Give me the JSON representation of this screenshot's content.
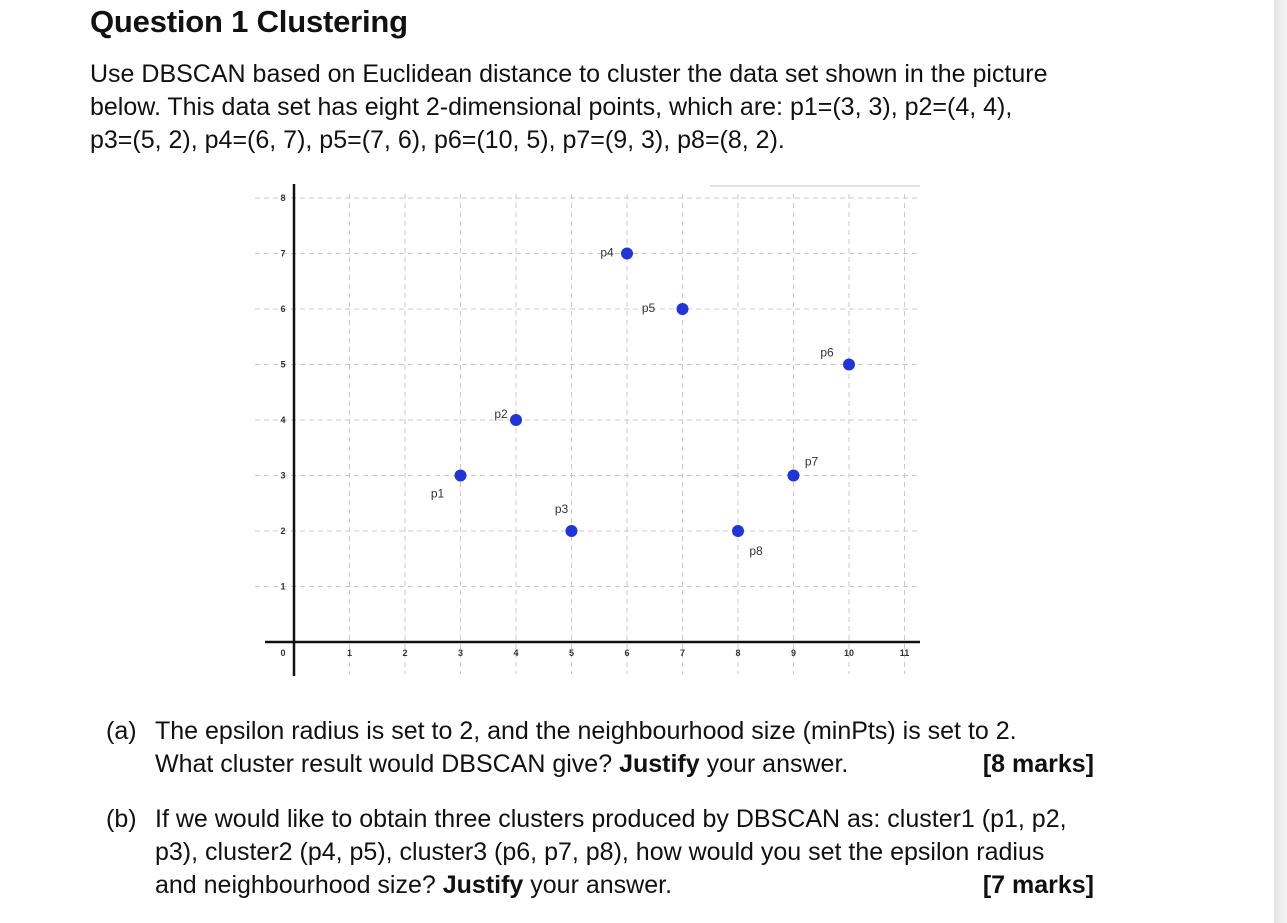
{
  "question": {
    "title": "Question 1 Clustering",
    "intro_lines": [
      "Use DBSCAN based on Euclidean distance to cluster the data set shown in the picture",
      "below.  This data set has eight 2-dimensional points, which are: p1=(3, 3), p2=(4, 4),",
      "p3=(5, 2), p4=(6, 7), p5=(7, 6), p6=(10, 5), p7=(9, 3), p8=(8, 2)."
    ]
  },
  "chart_data": {
    "type": "scatter",
    "title": "",
    "xlabel": "",
    "ylabel": "",
    "xlim": [
      0,
      11
    ],
    "ylim": [
      0,
      8
    ],
    "grid": true,
    "x_ticks": [
      0,
      1,
      2,
      3,
      4,
      5,
      6,
      7,
      8,
      9,
      10,
      11
    ],
    "y_ticks": [
      1,
      2,
      3,
      4,
      5,
      6,
      7,
      8
    ],
    "point_color": "#1f35d6",
    "points": [
      {
        "label": "p1",
        "x": 3,
        "y": 3
      },
      {
        "label": "p2",
        "x": 4,
        "y": 4
      },
      {
        "label": "p3",
        "x": 5,
        "y": 2
      },
      {
        "label": "p4",
        "x": 6,
        "y": 7
      },
      {
        "label": "p5",
        "x": 7,
        "y": 6
      },
      {
        "label": "p6",
        "x": 10,
        "y": 5
      },
      {
        "label": "p7",
        "x": 9,
        "y": 3
      },
      {
        "label": "p8",
        "x": 8,
        "y": 2
      }
    ]
  },
  "parts": {
    "a": {
      "label": "(a)",
      "line1": "The epsilon radius is set to 2, and the neighbourhood size (minPts) is set to 2.",
      "line2_pre": "What cluster result would DBSCAN give? ",
      "justify": "Justify",
      "line2_post": " your answer.",
      "marks": "[8 marks]"
    },
    "b": {
      "label": "(b)",
      "line1": "If we would like to obtain three clusters produced by DBSCAN as: cluster1 (p1, p2,",
      "line2": "p3), cluster2 (p4, p5), cluster3 (p6, p7, p8), how would you set the epsilon radius",
      "line3_pre": "and neighbourhood size? ",
      "justify": "Justify",
      "line3_post": " your answer.",
      "marks": "[7 marks]"
    }
  }
}
